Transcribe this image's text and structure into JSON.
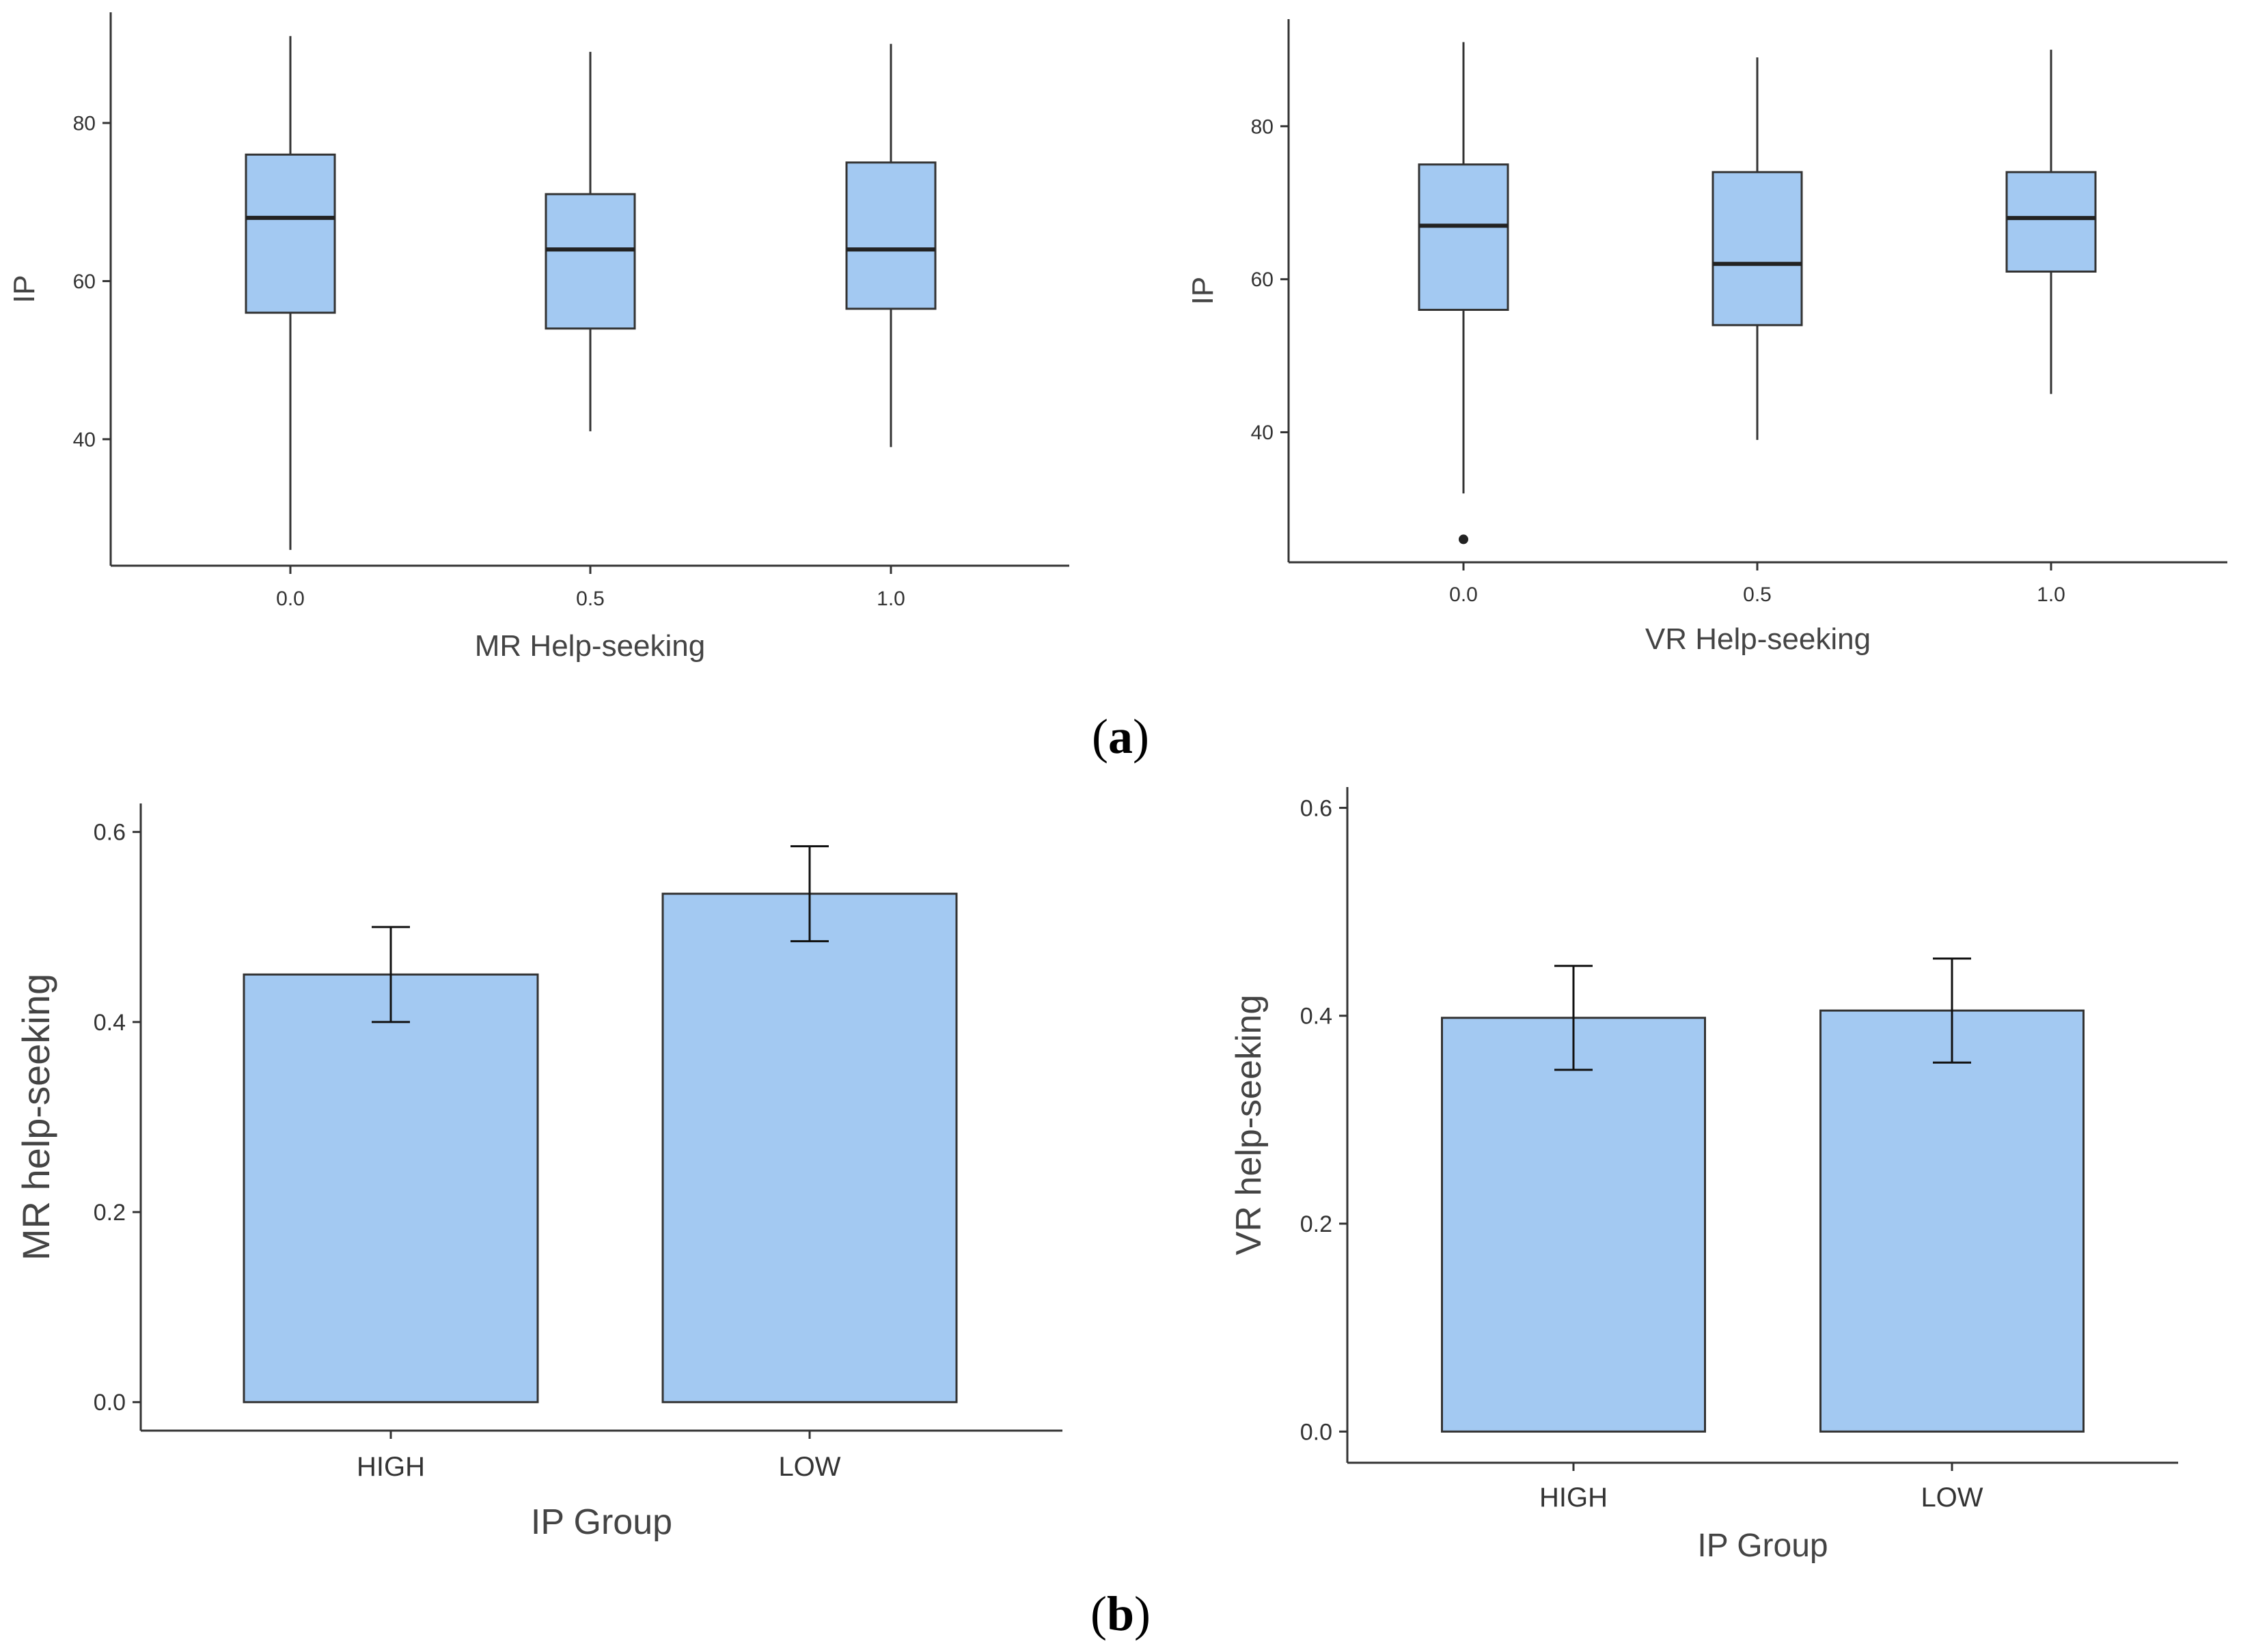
{
  "figure_labels": {
    "a_prefix": "(",
    "a": "a",
    "a_suffix": ")",
    "b_prefix": "(",
    "b": "b",
    "b_suffix": ")"
  },
  "colors": {
    "fill": "#a3c9f2",
    "stroke": "#333333",
    "axis": "#333333"
  },
  "chart_data": [
    {
      "type": "box",
      "id": "mr_box",
      "title": "",
      "xlabel": "MR Help-seeking",
      "ylabel": "IP",
      "categories": [
        "0.0",
        "0.5",
        "1.0"
      ],
      "ylim": [
        24,
        94
      ],
      "yticks": [
        {
          "v": 40,
          "label": "40"
        },
        {
          "v": 60,
          "label": "60"
        },
        {
          "v": 80,
          "label": "80"
        }
      ],
      "boxes": [
        {
          "min": 26,
          "q1": 56,
          "median": 68,
          "q3": 76,
          "max": 91
        },
        {
          "min": 41,
          "q1": 54,
          "median": 64,
          "q3": 71,
          "max": 89
        },
        {
          "min": 39,
          "q1": 56.5,
          "median": 64,
          "q3": 75,
          "max": 90
        }
      ],
      "outliers": []
    },
    {
      "type": "box",
      "id": "vr_box",
      "title": "",
      "xlabel": "VR Help-seeking",
      "ylabel": "IP",
      "categories": [
        "0.0",
        "0.5",
        "1.0"
      ],
      "ylim": [
        23,
        94
      ],
      "yticks": [
        {
          "v": 40,
          "label": "40"
        },
        {
          "v": 60,
          "label": "60"
        },
        {
          "v": 80,
          "label": "80"
        }
      ],
      "boxes": [
        {
          "min": 32,
          "q1": 56,
          "median": 67,
          "q3": 75,
          "max": 91
        },
        {
          "min": 39,
          "q1": 54,
          "median": 62,
          "q3": 74,
          "max": 89
        },
        {
          "min": 45,
          "q1": 61,
          "median": 68,
          "q3": 74,
          "max": 90
        }
      ],
      "outliers": [
        {
          "category": "0.0",
          "value": 26
        }
      ]
    },
    {
      "type": "bar",
      "id": "mr_bar",
      "title": "",
      "xlabel": "IP Group",
      "ylabel": "MR help-seeking",
      "categories": [
        "HIGH",
        "LOW"
      ],
      "values": [
        0.45,
        0.535
      ],
      "errors": [
        0.05,
        0.05
      ],
      "ylim": [
        -0.03,
        0.63
      ],
      "yticks": [
        {
          "v": 0.0,
          "label": "0.0"
        },
        {
          "v": 0.2,
          "label": "0.2"
        },
        {
          "v": 0.4,
          "label": "0.4"
        },
        {
          "v": 0.6,
          "label": "0.6"
        }
      ]
    },
    {
      "type": "bar",
      "id": "vr_bar",
      "title": "",
      "xlabel": "IP Group",
      "ylabel": "VR help-seeking",
      "categories": [
        "HIGH",
        "LOW"
      ],
      "values": [
        0.398,
        0.405
      ],
      "errors": [
        0.05,
        0.05
      ],
      "ylim": [
        -0.03,
        0.62
      ],
      "yticks": [
        {
          "v": 0.0,
          "label": "0.0"
        },
        {
          "v": 0.2,
          "label": "0.2"
        },
        {
          "v": 0.4,
          "label": "0.4"
        },
        {
          "v": 0.6,
          "label": "0.6"
        }
      ]
    }
  ]
}
